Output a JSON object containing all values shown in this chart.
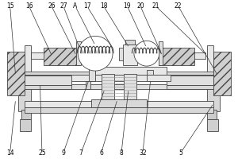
{
  "lc": "#444444",
  "fc_hatch": "#cccccc",
  "fc_light": "#e8e8e8",
  "fc_white": "#ffffff",
  "top_labels": {
    "15": 0.04,
    "16": 0.12,
    "26": 0.215,
    "27": 0.265,
    "A": 0.315,
    "17": 0.365,
    "18": 0.435,
    "19": 0.535,
    "20": 0.59,
    "21": 0.655,
    "22": 0.75
  },
  "bot_labels": {
    "14": 0.04,
    "25": 0.175,
    "9": 0.265,
    "7": 0.34,
    "6": 0.425,
    "8": 0.51,
    "32": 0.6,
    "5": 0.76
  }
}
